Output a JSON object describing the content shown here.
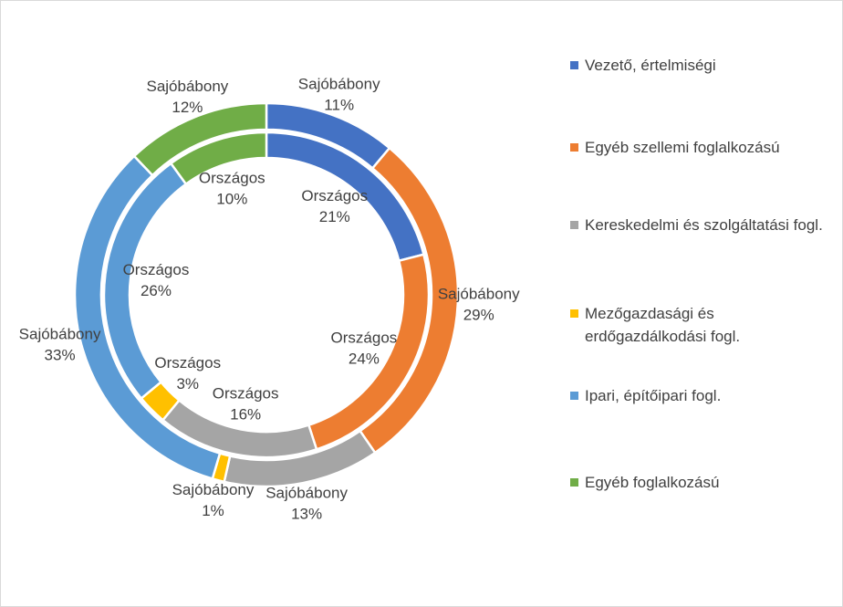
{
  "chart_data": {
    "type": "donut",
    "categories": [
      "Vezető, értelmiségi",
      "Egyéb szellemi foglalkozású",
      "Kereskedelmi és szolgáltatási fogl.",
      "Mezőgazdasági és erdőgazdálkodási fogl.",
      "Ipari, építőipari fogl.",
      "Egyéb foglalkozású"
    ],
    "colors": [
      "#4472c4",
      "#ed7d31",
      "#a5a5a5",
      "#ffc000",
      "#5b9bd5",
      "#70ad47"
    ],
    "legend": "right",
    "series": [
      {
        "name": "Országos",
        "values": [
          21,
          24,
          16,
          3,
          26,
          10
        ],
        "value_labels": [
          "21%",
          "24%",
          "16%",
          "3%",
          "26%",
          "10%"
        ]
      },
      {
        "name": "Sajóbábony",
        "values": [
          11,
          29,
          13,
          1,
          33,
          12
        ],
        "value_labels": [
          "11%",
          "29%",
          "13%",
          "1%",
          "33%",
          "12%"
        ]
      }
    ]
  }
}
